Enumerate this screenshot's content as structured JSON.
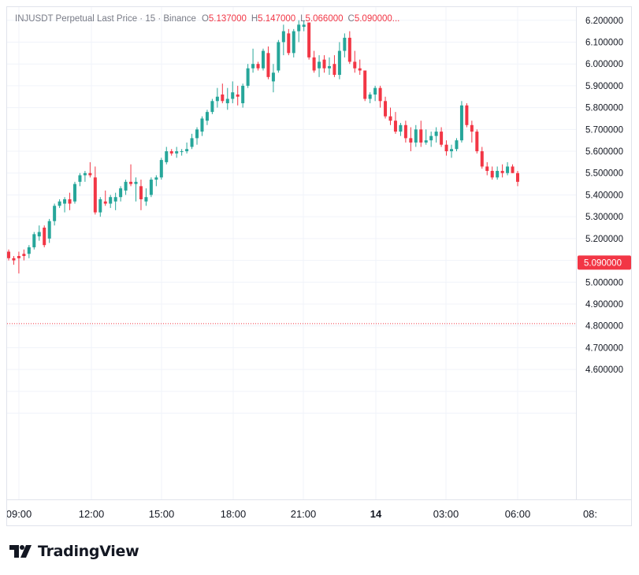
{
  "header": {
    "symbol": "INJUSDT Perpetual Last Price",
    "interval": "15",
    "exchange": "Binance",
    "open_label": "O",
    "open": "5.137000",
    "high_label": "H",
    "high": "5.147000",
    "low_label": "L",
    "low": "5.066000",
    "close_label": "C",
    "close": "5.090000..."
  },
  "brand": {
    "name": "TradingView"
  },
  "colors": {
    "up": "#26a69a",
    "down": "#f23645",
    "grid": "#f0f3fa",
    "axis_text": "#131722",
    "price_tag": "#f23645"
  },
  "chart_data": {
    "type": "candlestick",
    "ylim": [
      4.42,
      6.21
    ],
    "y_ticks": [
      "6.200000",
      "6.100000",
      "6.000000",
      "5.900000",
      "5.800000",
      "5.700000",
      "5.600000",
      "5.500000",
      "5.400000",
      "5.300000",
      "5.200000",
      "5.100000",
      "5.000000",
      "4.900000",
      "4.800000",
      "4.700000",
      "4.600000"
    ],
    "x_ticks": [
      "09:00",
      "12:00",
      "15:00",
      "18:00",
      "21:00",
      "14",
      "03:00",
      "06:00",
      "08:"
    ],
    "current_price": "5.090000",
    "reference_line": 4.81,
    "candles": [
      [
        5.14,
        5.15,
        5.1,
        5.11
      ],
      [
        5.11,
        5.12,
        5.08,
        5.1
      ],
      [
        5.12,
        5.14,
        5.04,
        5.11
      ],
      [
        5.13,
        5.15,
        5.1,
        5.12
      ],
      [
        5.13,
        5.17,
        5.11,
        5.16
      ],
      [
        5.16,
        5.23,
        5.15,
        5.22
      ],
      [
        5.21,
        5.26,
        5.19,
        5.23
      ],
      [
        5.25,
        5.26,
        5.16,
        5.17
      ],
      [
        5.2,
        5.29,
        5.18,
        5.28
      ],
      [
        5.28,
        5.36,
        5.26,
        5.35
      ],
      [
        5.35,
        5.38,
        5.34,
        5.37
      ],
      [
        5.36,
        5.39,
        5.32,
        5.38
      ],
      [
        5.38,
        5.41,
        5.33,
        5.36
      ],
      [
        5.37,
        5.46,
        5.36,
        5.45
      ],
      [
        5.46,
        5.5,
        5.44,
        5.49
      ],
      [
        5.49,
        5.51,
        5.46,
        5.5
      ],
      [
        5.5,
        5.55,
        5.48,
        5.49
      ],
      [
        5.48,
        5.53,
        5.31,
        5.32
      ],
      [
        5.32,
        5.39,
        5.3,
        5.38
      ],
      [
        5.37,
        5.42,
        5.35,
        5.36
      ],
      [
        5.36,
        5.4,
        5.34,
        5.39
      ],
      [
        5.37,
        5.41,
        5.33,
        5.39
      ],
      [
        5.39,
        5.44,
        5.37,
        5.43
      ],
      [
        5.42,
        5.47,
        5.4,
        5.46
      ],
      [
        5.46,
        5.54,
        5.44,
        5.45
      ],
      [
        5.45,
        5.48,
        5.37,
        5.46
      ],
      [
        5.44,
        5.47,
        5.33,
        5.38
      ],
      [
        5.37,
        5.43,
        5.35,
        5.39
      ],
      [
        5.4,
        5.48,
        5.39,
        5.47
      ],
      [
        5.47,
        5.49,
        5.44,
        5.48
      ],
      [
        5.48,
        5.57,
        5.47,
        5.56
      ],
      [
        5.55,
        5.62,
        5.54,
        5.6
      ],
      [
        5.6,
        5.61,
        5.58,
        5.59
      ],
      [
        5.59,
        5.62,
        5.57,
        5.6
      ],
      [
        5.6,
        5.61,
        5.58,
        5.6
      ],
      [
        5.6,
        5.64,
        5.59,
        5.61
      ],
      [
        5.62,
        5.68,
        5.61,
        5.66
      ],
      [
        5.66,
        5.71,
        5.63,
        5.7
      ],
      [
        5.69,
        5.76,
        5.67,
        5.75
      ],
      [
        5.74,
        5.79,
        5.72,
        5.78
      ],
      [
        5.78,
        5.84,
        5.77,
        5.83
      ],
      [
        5.83,
        5.89,
        5.8,
        5.85
      ],
      [
        5.86,
        5.91,
        5.82,
        5.83
      ],
      [
        5.82,
        5.89,
        5.79,
        5.84
      ],
      [
        5.84,
        5.92,
        5.82,
        5.87
      ],
      [
        5.86,
        5.9,
        5.81,
        5.85
      ],
      [
        5.82,
        5.91,
        5.8,
        5.9
      ],
      [
        5.9,
        6.0,
        5.89,
        5.98
      ],
      [
        5.98,
        6.07,
        5.96,
        6.0
      ],
      [
        6.0,
        6.01,
        5.97,
        5.98
      ],
      [
        5.98,
        6.07,
        5.97,
        6.06
      ],
      [
        6.05,
        6.08,
        5.93,
        5.94
      ],
      [
        5.92,
        6.0,
        5.87,
        5.96
      ],
      [
        5.97,
        6.11,
        5.96,
        6.1
      ],
      [
        6.1,
        6.18,
        6.04,
        6.15
      ],
      [
        6.14,
        6.16,
        6.04,
        6.05
      ],
      [
        6.05,
        6.16,
        6.03,
        6.15
      ],
      [
        6.15,
        6.2,
        6.1,
        6.18
      ],
      [
        6.17,
        6.2,
        6.15,
        6.18
      ],
      [
        6.19,
        6.19,
        6.02,
        6.03
      ],
      [
        6.03,
        6.06,
        5.96,
        5.97
      ],
      [
        5.98,
        6.04,
        5.94,
        6.01
      ],
      [
        6.02,
        6.04,
        5.96,
        5.98
      ],
      [
        5.98,
        6.03,
        5.95,
        5.99
      ],
      [
        6.0,
        6.04,
        5.94,
        5.95
      ],
      [
        5.95,
        6.1,
        5.93,
        6.06
      ],
      [
        6.06,
        6.14,
        6.03,
        6.12
      ],
      [
        6.12,
        6.15,
        6.0,
        6.01
      ],
      [
        6.01,
        6.06,
        5.96,
        5.98
      ],
      [
        5.98,
        6.02,
        5.95,
        5.97
      ],
      [
        5.97,
        5.97,
        5.83,
        5.84
      ],
      [
        5.84,
        5.87,
        5.82,
        5.86
      ],
      [
        5.86,
        5.9,
        5.83,
        5.89
      ],
      [
        5.89,
        5.9,
        5.8,
        5.83
      ],
      [
        5.83,
        5.85,
        5.75,
        5.76
      ],
      [
        5.76,
        5.8,
        5.72,
        5.74
      ],
      [
        5.74,
        5.78,
        5.68,
        5.69
      ],
      [
        5.69,
        5.73,
        5.67,
        5.72
      ],
      [
        5.72,
        5.74,
        5.64,
        5.66
      ],
      [
        5.66,
        5.71,
        5.6,
        5.64
      ],
      [
        5.64,
        5.72,
        5.62,
        5.7
      ],
      [
        5.7,
        5.74,
        5.62,
        5.64
      ],
      [
        5.64,
        5.7,
        5.63,
        5.65
      ],
      [
        5.65,
        5.69,
        5.62,
        5.67
      ],
      [
        5.67,
        5.71,
        5.64,
        5.69
      ],
      [
        5.69,
        5.71,
        5.62,
        5.63
      ],
      [
        5.63,
        5.65,
        5.58,
        5.6
      ],
      [
        5.6,
        5.63,
        5.57,
        5.61
      ],
      [
        5.61,
        5.66,
        5.6,
        5.65
      ],
      [
        5.65,
        5.83,
        5.64,
        5.81
      ],
      [
        5.81,
        5.82,
        5.71,
        5.72
      ],
      [
        5.72,
        5.74,
        5.64,
        5.69
      ],
      [
        5.69,
        5.7,
        5.59,
        5.6
      ],
      [
        5.6,
        5.62,
        5.52,
        5.53
      ],
      [
        5.53,
        5.55,
        5.49,
        5.51
      ],
      [
        5.51,
        5.53,
        5.47,
        5.48
      ],
      [
        5.48,
        5.53,
        5.47,
        5.51
      ],
      [
        5.51,
        5.54,
        5.48,
        5.5
      ],
      [
        5.5,
        5.55,
        5.49,
        5.53
      ],
      [
        5.53,
        5.54,
        5.5,
        5.5
      ],
      [
        5.5,
        5.51,
        5.44,
        5.46
      ]
    ]
  }
}
